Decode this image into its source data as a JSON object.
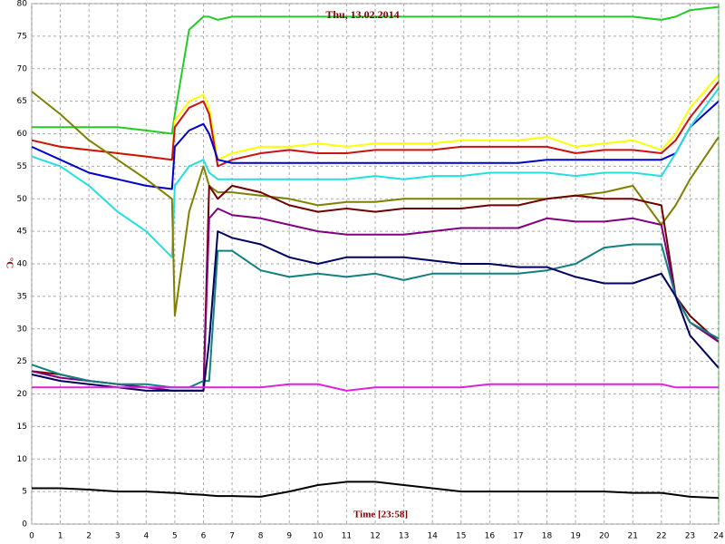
{
  "chart_data": {
    "type": "line",
    "title": "Thu, 13.02.2014",
    "xlabel": "Time [23:58]",
    "ylabel": "°C",
    "xlim": [
      0,
      24
    ],
    "ylim": [
      0,
      80
    ],
    "xticks": [
      0,
      1,
      2,
      3,
      4,
      5,
      6,
      7,
      8,
      9,
      10,
      11,
      12,
      13,
      14,
      15,
      16,
      17,
      18,
      19,
      20,
      21,
      22,
      23,
      24
    ],
    "yticks": [
      0,
      5,
      10,
      15,
      20,
      25,
      30,
      35,
      40,
      45,
      50,
      55,
      60,
      65,
      70,
      75,
      80
    ],
    "grid": true,
    "x": [
      0,
      1,
      2,
      3,
      4,
      4.9,
      5,
      5.5,
      6,
      6.2,
      6.5,
      7,
      8,
      9,
      10,
      11,
      12,
      13,
      14,
      15,
      16,
      17,
      18,
      19,
      20,
      21,
      22,
      22.5,
      23,
      24
    ],
    "series": [
      {
        "color": "#22cc22",
        "values": [
          61,
          61,
          61,
          61,
          60.5,
          60,
          63,
          76,
          78,
          78,
          77.5,
          78,
          78,
          78,
          78,
          78,
          78,
          78,
          78,
          78,
          78,
          78,
          78,
          78,
          78,
          78,
          77.5,
          78,
          79,
          79.5
        ]
      },
      {
        "color": "#ffff00",
        "values": [
          59,
          58,
          57.5,
          57,
          56.5,
          56,
          62,
          65,
          66,
          64,
          56,
          57,
          58,
          58,
          58.5,
          58,
          58.5,
          58.5,
          58.5,
          59,
          59,
          59,
          59.5,
          58,
          58.5,
          59,
          57.5,
          60,
          64,
          69
        ]
      },
      {
        "color": "#cc1111",
        "values": [
          59,
          58,
          57.5,
          57,
          56.5,
          56,
          61,
          64,
          65,
          63,
          55,
          56,
          57,
          57.5,
          57,
          57,
          57.5,
          57.5,
          57.5,
          58,
          58,
          58,
          58,
          57,
          57.5,
          57.5,
          57,
          59,
          62.5,
          68
        ]
      },
      {
        "color": "#0000cc",
        "values": [
          58,
          56,
          54,
          53,
          52,
          51.5,
          58,
          60.5,
          61.5,
          60,
          56,
          55.5,
          55.5,
          55.5,
          55.5,
          55.5,
          55.5,
          55.5,
          55.5,
          55.5,
          55.5,
          55.5,
          56,
          56,
          56,
          56,
          56,
          57,
          61,
          65
        ]
      },
      {
        "color": "#22e0e0",
        "values": [
          56.5,
          55,
          52,
          48,
          45,
          41,
          52,
          55,
          56,
          54,
          53,
          53,
          53,
          53,
          53,
          53,
          53.5,
          53,
          53.5,
          53.5,
          54,
          54,
          54,
          53.5,
          54,
          54,
          53.5,
          57,
          61,
          67
        ]
      },
      {
        "color": "#808000",
        "values": [
          66.5,
          63,
          59,
          56,
          53,
          50,
          32,
          48,
          55,
          52,
          51,
          51,
          50.5,
          50,
          49,
          49.5,
          49.5,
          50,
          50,
          50,
          50,
          50,
          50,
          50.5,
          51,
          52,
          46,
          49,
          53,
          59.5
        ]
      },
      {
        "color": "#700000",
        "values": [
          23.5,
          23,
          22,
          21.5,
          21,
          20.5,
          20.5,
          20.5,
          20.5,
          52,
          50,
          52,
          51,
          49,
          48,
          48.5,
          48,
          48.5,
          48.5,
          48.5,
          49,
          49,
          50,
          50.5,
          50,
          50,
          49,
          35,
          32,
          28
        ]
      },
      {
        "color": "#800080",
        "values": [
          23.5,
          22.5,
          22,
          21.5,
          21,
          20.5,
          20.5,
          20.5,
          20.5,
          47,
          48.5,
          47.5,
          47,
          46,
          45,
          44.5,
          44.5,
          44.5,
          45,
          45.5,
          45.5,
          45.5,
          47,
          46.5,
          46.5,
          47,
          46,
          35,
          31,
          28
        ]
      },
      {
        "color": "#108080",
        "values": [
          24.5,
          23,
          22,
          21.5,
          21.5,
          21,
          21,
          21,
          22,
          22,
          42,
          42,
          39,
          38,
          38.5,
          38,
          38.5,
          37.5,
          38.5,
          38.5,
          38.5,
          38.5,
          39,
          40,
          42.5,
          43,
          43,
          35,
          31,
          28.5
        ]
      },
      {
        "color": "#000060",
        "values": [
          23,
          22,
          21.5,
          21,
          20.5,
          20.5,
          20.5,
          20.5,
          20.5,
          28,
          45,
          44,
          43,
          41,
          40,
          41,
          41,
          41,
          40.5,
          40,
          40,
          39.5,
          39.5,
          38,
          37,
          37,
          38.5,
          35,
          29,
          24
        ]
      },
      {
        "color": "#e020e0",
        "values": [
          21,
          21,
          21,
          21,
          21,
          21,
          21,
          21,
          21,
          21,
          21,
          21,
          21,
          21.5,
          21.5,
          20.5,
          21,
          21,
          21,
          21,
          21.5,
          21.5,
          21.5,
          21.5,
          21.5,
          21.5,
          21.5,
          21,
          21,
          21
        ]
      },
      {
        "color": "#000000",
        "values": [
          5.5,
          5.5,
          5.3,
          5,
          5,
          4.8,
          4.8,
          4.6,
          4.5,
          4.4,
          4.3,
          4.3,
          4.2,
          5,
          6,
          6.5,
          6.5,
          6,
          5.5,
          5,
          5,
          5,
          5,
          5,
          5,
          4.8,
          4.8,
          4.5,
          4.2,
          4
        ]
      }
    ]
  }
}
